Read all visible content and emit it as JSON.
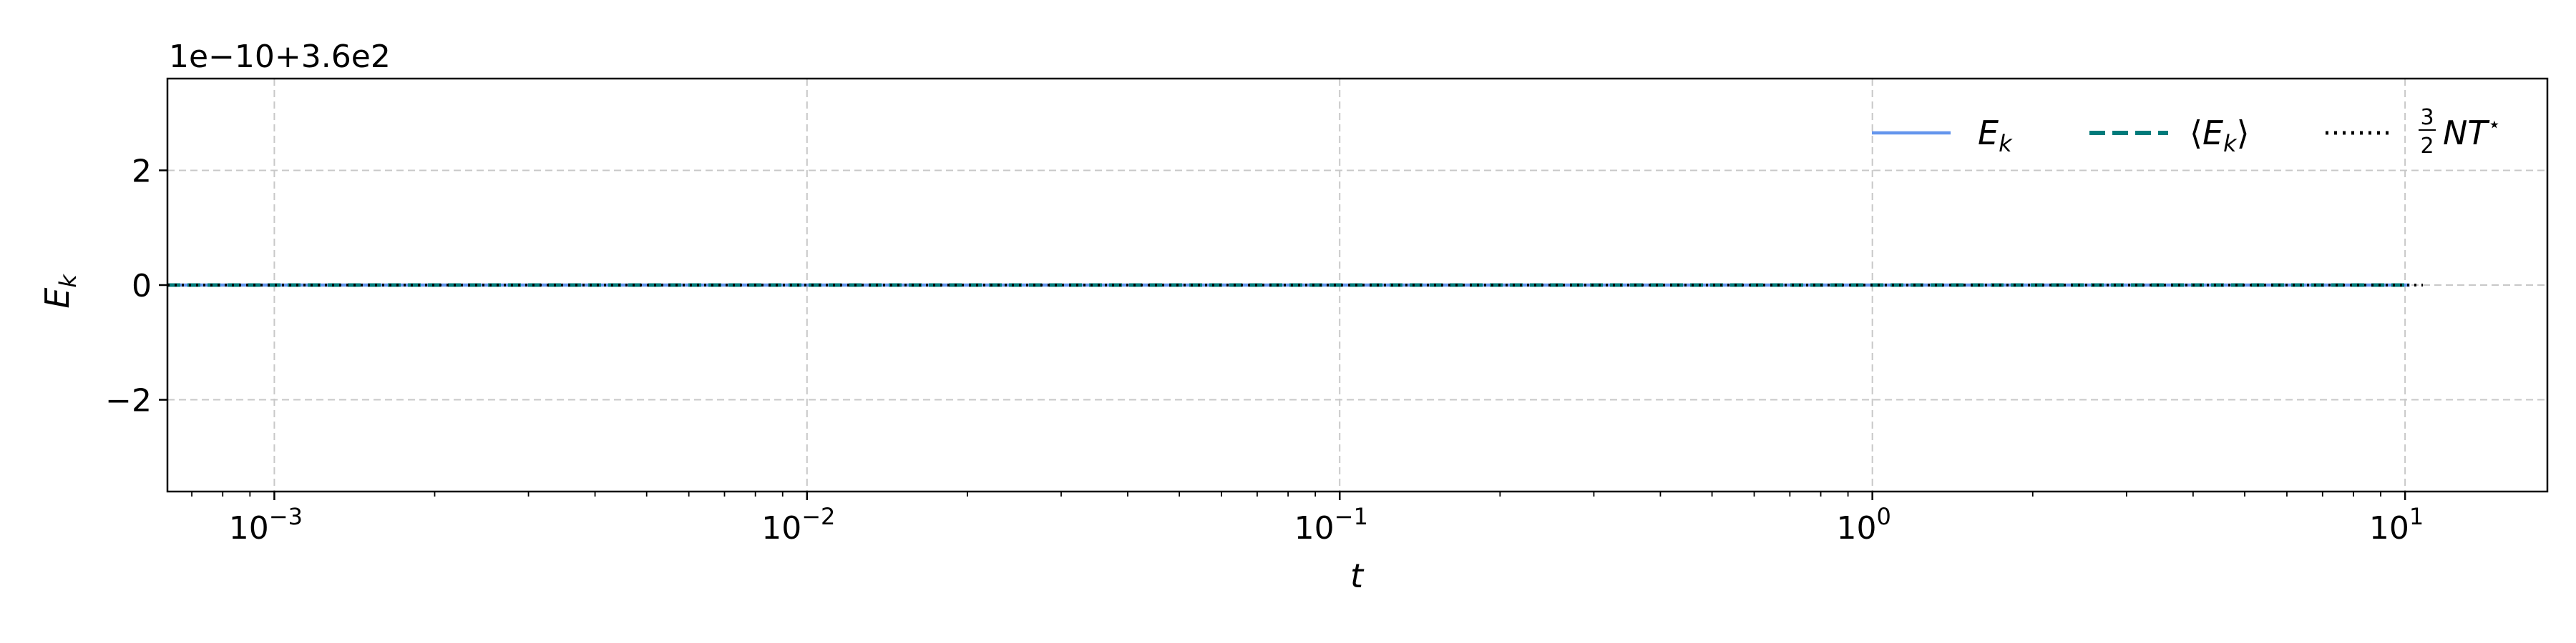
{
  "chart_data": {
    "type": "line",
    "xscale": "log",
    "xlabel": "t",
    "ylabel": "E_k",
    "offset_text": "1e−10+3.6e2",
    "xlim": [
      0.00063,
      18.5
    ],
    "ylim": [
      -3.6,
      3.6
    ],
    "x_ticks": [
      {
        "value": 0.001,
        "label": "10−3"
      },
      {
        "value": 0.01,
        "label": "10−2"
      },
      {
        "value": 0.1,
        "label": "10−1"
      },
      {
        "value": 1,
        "label": "100"
      },
      {
        "value": 10,
        "label": "101"
      }
    ],
    "y_ticks": [
      {
        "value": -2,
        "label": "−2"
      },
      {
        "value": 0,
        "label": "0"
      },
      {
        "value": 2,
        "label": "2"
      }
    ],
    "grid": true,
    "legend_position": "top-right",
    "series": [
      {
        "name": "E_k",
        "style": "solid",
        "color": "#6495ed",
        "x": [
          0.00063,
          10.2
        ],
        "y": [
          0,
          0
        ]
      },
      {
        "name": "⟨E_k⟩",
        "style": "dashed",
        "color": "#007b7b",
        "x": [
          0.00063,
          10.2
        ],
        "y": [
          0,
          0
        ]
      },
      {
        "name": "3/2 N T*",
        "style": "dotted",
        "color": "#000000",
        "x": [
          0.00063,
          10.8
        ],
        "y": [
          0,
          0
        ]
      }
    ]
  }
}
